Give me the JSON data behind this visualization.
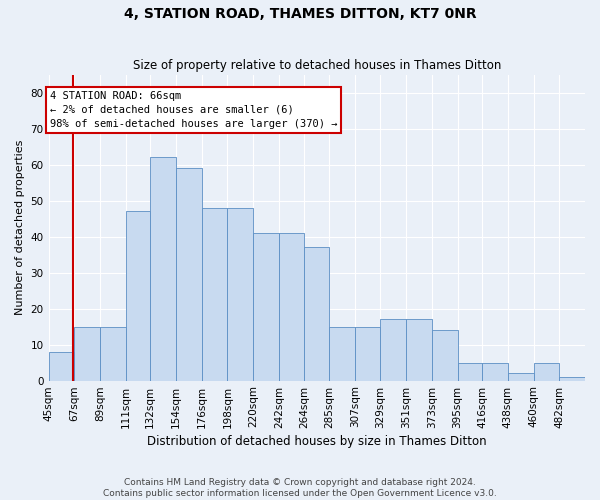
{
  "title": "4, STATION ROAD, THAMES DITTON, KT7 0NR",
  "subtitle": "Size of property relative to detached houses in Thames Ditton",
  "xlabel": "Distribution of detached houses by size in Thames Ditton",
  "ylabel": "Number of detached properties",
  "categories": [
    "45sqm",
    "67sqm",
    "89sqm",
    "111sqm",
    "132sqm",
    "154sqm",
    "176sqm",
    "198sqm",
    "220sqm",
    "242sqm",
    "264sqm",
    "285sqm",
    "307sqm",
    "329sqm",
    "351sqm",
    "373sqm",
    "395sqm",
    "416sqm",
    "438sqm",
    "460sqm",
    "482sqm"
  ],
  "bar_heights": [
    8,
    15,
    15,
    47,
    62,
    59,
    48,
    48,
    41,
    41,
    37,
    15,
    15,
    17,
    17,
    14,
    5,
    5,
    2,
    5,
    1
  ],
  "bin_edges": [
    45,
    67,
    89,
    111,
    132,
    154,
    176,
    198,
    220,
    242,
    264,
    285,
    307,
    329,
    351,
    373,
    395,
    416,
    438,
    460,
    482,
    504
  ],
  "bar_color": "#c8daf0",
  "bar_edge_color": "#5b8ec4",
  "background_color": "#eaf0f8",
  "grid_color": "#ffffff",
  "annotation_text": "4 STATION ROAD: 66sqm\n← 2% of detached houses are smaller (6)\n98% of semi-detached houses are larger (370) →",
  "annotation_box_facecolor": "#ffffff",
  "annotation_border_color": "#cc0000",
  "property_line_color": "#cc0000",
  "property_line_x": 66,
  "ylim": [
    0,
    85
  ],
  "yticks": [
    0,
    10,
    20,
    30,
    40,
    50,
    60,
    70,
    80
  ],
  "title_fontsize": 10,
  "subtitle_fontsize": 8.5,
  "ylabel_fontsize": 8,
  "xlabel_fontsize": 8.5,
  "tick_fontsize": 7.5,
  "footnote1": "Contains HM Land Registry data © Crown copyright and database right 2024.",
  "footnote2": "Contains public sector information licensed under the Open Government Licence v3.0.",
  "footnote_fontsize": 6.5
}
